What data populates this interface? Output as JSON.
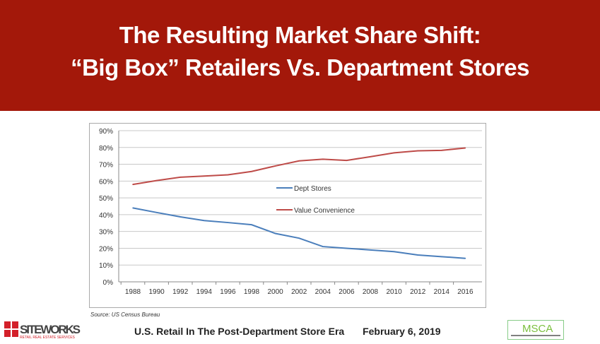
{
  "header": {
    "line1": "The Resulting Market Share Shift:",
    "line2": "“Big Box” Retailers Vs. Department Stores"
  },
  "source": "Source: US Census Bureau",
  "footer": {
    "title": "U.S. Retail In The  Post-Department Store Era",
    "date": "February 6, 2019"
  },
  "logos": {
    "left": "SITEWORKS RETAIL REAL ESTATE SERVICES",
    "right": "MSCA"
  },
  "chart_data": {
    "type": "line",
    "x": [
      1988,
      1990,
      1992,
      1994,
      1996,
      1998,
      2000,
      2002,
      2004,
      2006,
      2008,
      2010,
      2012,
      2014,
      2016
    ],
    "yticks": [
      "0%",
      "10%",
      "20%",
      "30%",
      "40%",
      "50%",
      "60%",
      "70%",
      "80%",
      "90%"
    ],
    "ylim": [
      0,
      90
    ],
    "grid": true,
    "legend": "center",
    "series": [
      {
        "name": "Dept Stores",
        "color": "#4a7ebb",
        "values": [
          44,
          41.3,
          38.7,
          36.5,
          35.3,
          34,
          28.8,
          26,
          21,
          20,
          19,
          18,
          16,
          15,
          14
        ]
      },
      {
        "name": "Value Convenience",
        "color": "#be4b48",
        "values": [
          58,
          60.3,
          62.3,
          63,
          63.7,
          65.7,
          69,
          72,
          73,
          72.3,
          74.5,
          76.8,
          78,
          78.3,
          79.7
        ]
      }
    ]
  }
}
